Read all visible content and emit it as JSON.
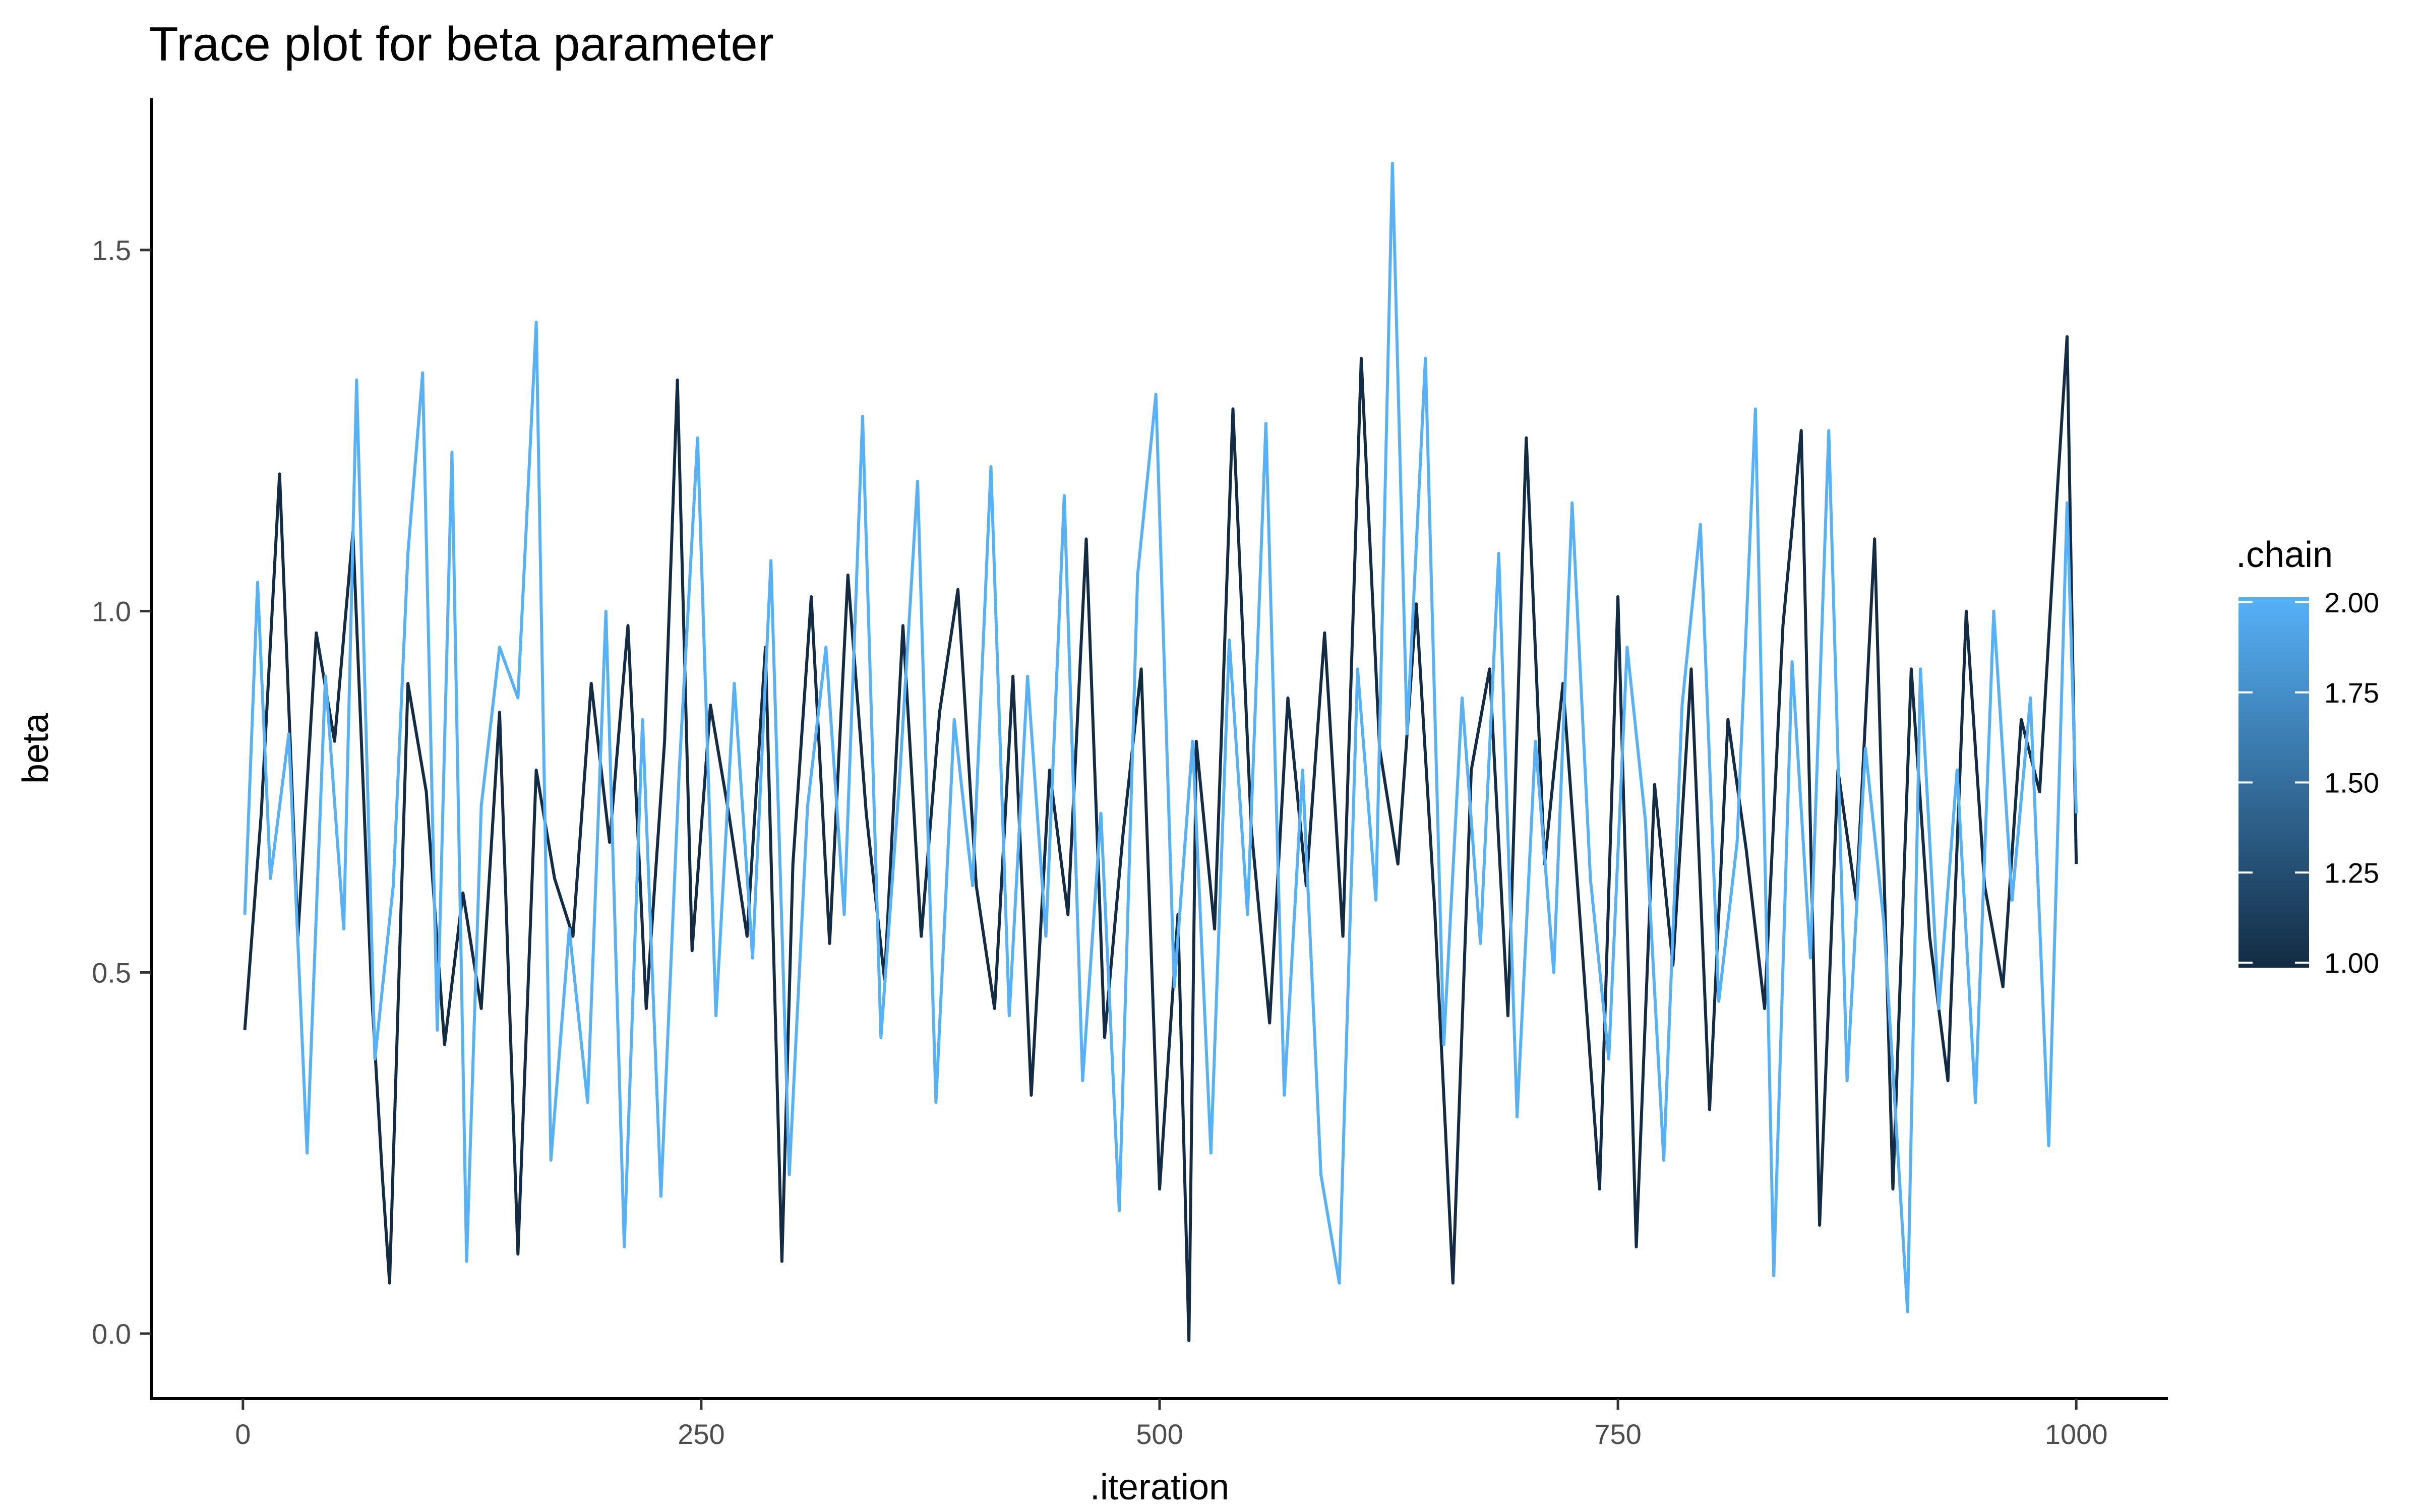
{
  "chart_data": {
    "type": "line",
    "title": "Trace plot for beta parameter",
    "xlabel": ".iteration",
    "ylabel": "beta",
    "xlim": [
      -50,
      1050
    ],
    "ylim": [
      -0.09,
      1.71
    ],
    "xticks": [
      "0",
      "250",
      "500",
      "750",
      "1000"
    ],
    "xtick_values": [
      0,
      250,
      500,
      750,
      1000
    ],
    "yticks": [
      "0.0",
      "0.5",
      "1.0",
      "1.5"
    ],
    "ytick_values": [
      0.0,
      0.5,
      1.0,
      1.5
    ],
    "grid": false,
    "legend": {
      "title": ".chain",
      "placement": "right",
      "type": "colorbar",
      "range": [
        1.0,
        2.0
      ],
      "labels": [
        "2.00",
        "1.75",
        "1.50",
        "1.25",
        "1.00"
      ],
      "label_values": [
        2.0,
        1.75,
        1.5,
        1.25,
        1.0
      ],
      "color_low": "#132B43",
      "color_high": "#56B1F7"
    },
    "series": [
      {
        "chain": 1,
        "color": "#132B43",
        "x": [
          1,
          10,
          20,
          30,
          40,
          50,
          60,
          70,
          76,
          80,
          90,
          100,
          110,
          120,
          130,
          140,
          150,
          160,
          170,
          180,
          190,
          200,
          210,
          220,
          230,
          237,
          245,
          255,
          265,
          275,
          285,
          294,
          300,
          310,
          320,
          330,
          340,
          350,
          360,
          370,
          380,
          390,
          400,
          410,
          420,
          430,
          440,
          450,
          460,
          470,
          480,
          490,
          500,
          510,
          516,
          520,
          530,
          540,
          550,
          560,
          570,
          580,
          590,
          600,
          610,
          620,
          630,
          640,
          650,
          660,
          670,
          680,
          690,
          700,
          710,
          720,
          730,
          740,
          750,
          760,
          770,
          780,
          790,
          800,
          810,
          820,
          830,
          840,
          850,
          860,
          870,
          880,
          890,
          900,
          910,
          920,
          930,
          940,
          950,
          960,
          970,
          980,
          990,
          995,
          1000
        ],
        "y": [
          0.42,
          0.72,
          1.19,
          0.55,
          0.97,
          0.82,
          1.11,
          0.48,
          0.22,
          0.07,
          0.9,
          0.75,
          0.4,
          0.61,
          0.45,
          0.86,
          0.11,
          0.78,
          0.63,
          0.55,
          0.9,
          0.68,
          0.98,
          0.45,
          0.82,
          1.32,
          0.53,
          0.87,
          0.72,
          0.55,
          0.95,
          0.1,
          0.65,
          1.02,
          0.54,
          1.05,
          0.72,
          0.49,
          0.98,
          0.55,
          0.86,
          1.03,
          0.62,
          0.45,
          0.91,
          0.33,
          0.78,
          0.58,
          1.1,
          0.41,
          0.69,
          0.92,
          0.2,
          0.58,
          -0.01,
          0.82,
          0.56,
          1.28,
          0.7,
          0.43,
          0.88,
          0.62,
          0.97,
          0.55,
          1.35,
          0.81,
          0.65,
          1.01,
          0.59,
          0.07,
          0.78,
          0.92,
          0.44,
          1.24,
          0.65,
          0.9,
          0.55,
          0.2,
          1.02,
          0.12,
          0.76,
          0.51,
          0.92,
          0.31,
          0.85,
          0.67,
          0.45,
          0.98,
          1.25,
          0.15,
          0.78,
          0.6,
          1.1,
          0.2,
          0.92,
          0.55,
          0.35,
          1.0,
          0.62,
          0.48,
          0.85,
          0.75,
          1.18,
          1.38,
          0.65
        ]
      },
      {
        "chain": 2,
        "color": "#56B1F7",
        "x": [
          1,
          8,
          15,
          25,
          35,
          45,
          55,
          62,
          72,
          82,
          90,
          98,
          106,
          114,
          122,
          130,
          140,
          150,
          160,
          168,
          178,
          188,
          198,
          208,
          218,
          228,
          238,
          248,
          258,
          268,
          278,
          288,
          298,
          308,
          318,
          328,
          338,
          348,
          358,
          368,
          378,
          388,
          398,
          408,
          418,
          428,
          438,
          448,
          458,
          468,
          478,
          488,
          498,
          508,
          518,
          528,
          538,
          548,
          558,
          568,
          578,
          588,
          598,
          608,
          618,
          627,
          635,
          645,
          655,
          665,
          675,
          685,
          695,
          705,
          715,
          725,
          735,
          745,
          755,
          765,
          775,
          785,
          795,
          805,
          815,
          825,
          835,
          845,
          855,
          865,
          875,
          885,
          895,
          908,
          915,
          925,
          935,
          945,
          955,
          965,
          975,
          985,
          995,
          1000
        ],
        "y": [
          0.58,
          1.04,
          0.63,
          0.83,
          0.25,
          0.91,
          0.56,
          1.32,
          0.38,
          0.62,
          1.08,
          1.33,
          0.42,
          1.22,
          0.1,
          0.73,
          0.95,
          0.88,
          1.4,
          0.24,
          0.56,
          0.32,
          1.0,
          0.12,
          0.85,
          0.19,
          0.78,
          1.24,
          0.44,
          0.9,
          0.52,
          1.07,
          0.22,
          0.73,
          0.95,
          0.58,
          1.27,
          0.41,
          0.76,
          1.18,
          0.32,
          0.85,
          0.62,
          1.2,
          0.44,
          0.91,
          0.55,
          1.16,
          0.35,
          0.72,
          0.17,
          1.05,
          1.3,
          0.48,
          0.82,
          0.25,
          0.96,
          0.58,
          1.26,
          0.33,
          0.78,
          0.22,
          0.07,
          0.92,
          0.6,
          1.62,
          0.83,
          1.35,
          0.4,
          0.88,
          0.54,
          1.08,
          0.3,
          0.82,
          0.5,
          1.15,
          0.63,
          0.38,
          0.95,
          0.71,
          0.24,
          0.87,
          1.12,
          0.46,
          0.68,
          1.28,
          0.08,
          0.93,
          0.52,
          1.25,
          0.35,
          0.81,
          0.57,
          0.03,
          0.92,
          0.45,
          0.78,
          0.32,
          1.0,
          0.6,
          0.88,
          0.26,
          1.15,
          0.72
        ]
      }
    ]
  }
}
